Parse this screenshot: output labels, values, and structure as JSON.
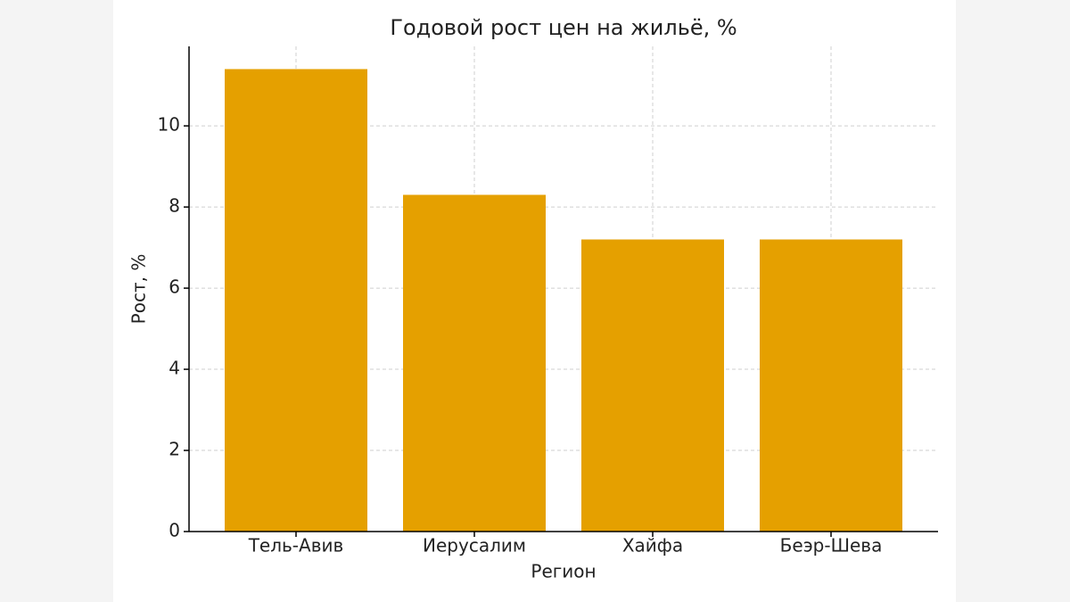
{
  "chart_data": {
    "type": "bar",
    "title": "Годовой рост цен на жильё, %",
    "x_label": "Регион",
    "y_label": "Рост, %",
    "categories": [
      "Тель-Авив",
      "Иерусалим",
      "Хайфа",
      "Беэр-Шева"
    ],
    "values": [
      11.4,
      8.3,
      7.2,
      7.2
    ],
    "color": "#e5a000",
    "ylim": [
      0,
      11.96
    ],
    "yticks": [
      0,
      2,
      4,
      6,
      8,
      10
    ],
    "grid": true
  }
}
